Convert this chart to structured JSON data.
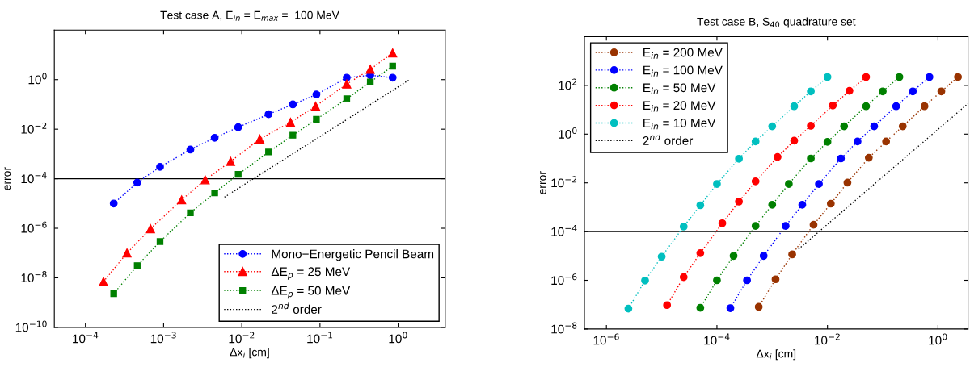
{
  "chart_data": [
    {
      "type": "line",
      "title": "Test case A, E$_{in}$ = E$_{max}$ =  100 MeV",
      "xlabel": "Δx$_{i}$ [cm]",
      "ylabel": "error",
      "log": "xy",
      "grid": false,
      "legend": "bottom right",
      "line_style": "dotted",
      "xlim": [
        4e-05,
        4
      ],
      "ylim": [
        1e-10,
        100
      ],
      "xticks": [
        {
          "value": 0.0001,
          "label": "10$^{−4}$"
        },
        {
          "value": 0.001,
          "label": "10$^{−3}$"
        },
        {
          "value": 0.01,
          "label": "10$^{−2}$"
        },
        {
          "value": 0.1,
          "label": "10$^{−1}$"
        },
        {
          "value": 1,
          "label": "10$^{0}$"
        }
      ],
      "yticks": [
        {
          "value": 1e-10,
          "label": "10$^{−10}$"
        },
        {
          "value": 1e-08,
          "label": "10$^{−8}$"
        },
        {
          "value": 1e-06,
          "label": "10$^{−6}$"
        },
        {
          "value": 0.0001,
          "label": "10$^{−4}$"
        },
        {
          "value": 0.01,
          "label": "10$^{−2}$"
        },
        {
          "value": 1,
          "label": "10$^{0}$"
        }
      ],
      "ref_lines": [
        {
          "axis": "y",
          "value": 0.0001,
          "color": "#000000",
          "line_style": "solid"
        }
      ],
      "series": [
        {
          "name": "Mono−Energetic Pencil Beam",
          "color": "#0000ff",
          "marker": "circle",
          "x": [
            0.00023,
            0.00046,
            0.0009,
            0.0022,
            0.0045,
            0.009,
            0.022,
            0.045,
            0.09,
            0.22,
            0.44,
            0.85
          ],
          "values": [
            1e-05,
            7e-05,
            0.0003,
            0.0015,
            0.0045,
            0.012,
            0.04,
            0.1,
            0.25,
            1.2,
            1.5,
            1.2
          ]
        },
        {
          "name": "ΔE$_{p}$ = 25 MeV",
          "color": "#ff0000",
          "marker": "triangle",
          "x": [
            0.00017,
            0.00034,
            0.00068,
            0.0017,
            0.0034,
            0.0072,
            0.017,
            0.042,
            0.088,
            0.22,
            0.44,
            0.85
          ],
          "values": [
            7e-09,
            1e-07,
            9.5e-07,
            1.4e-05,
            9e-05,
            0.0005,
            0.004,
            0.019,
            0.085,
            0.66,
            2.6,
            12
          ]
        },
        {
          "name": "ΔE$_{p}$ = 50 MeV",
          "color": "#008000",
          "marker": "square",
          "x": [
            0.00023,
            0.00046,
            0.0009,
            0.0022,
            0.0045,
            0.009,
            0.022,
            0.045,
            0.09,
            0.22,
            0.44,
            0.85
          ],
          "values": [
            2.3e-09,
            3.1e-08,
            2.9e-07,
            4.2e-06,
            2.7e-05,
            0.00015,
            0.0012,
            0.0057,
            0.025,
            0.17,
            0.8,
            3.5
          ]
        },
        {
          "name": "2$^{nd}$ order",
          "color": "#000000",
          "marker": "none",
          "x": [
            0.006,
            1.4
          ],
          "values": [
            1.8e-05,
            1.0
          ]
        }
      ]
    },
    {
      "type": "line",
      "title": "Test case B, S$_{40}$ quadrature set",
      "xlabel": "Δx$_{i}$ [cm]",
      "ylabel": "error",
      "log": "xy",
      "grid": false,
      "legend": "top left",
      "line_style": "dotted",
      "xlim": [
        4e-07,
        3.5
      ],
      "ylim": [
        1e-08,
        10000
      ],
      "xticks": [
        {
          "value": 1e-06,
          "label": "10$^{−6}$"
        },
        {
          "value": 0.0001,
          "label": "10$^{−4}$"
        },
        {
          "value": 0.01,
          "label": "10$^{−2}$"
        },
        {
          "value": 1,
          "label": "10$^{0}$"
        }
      ],
      "yticks": [
        {
          "value": 1e-08,
          "label": "10$^{−8}$"
        },
        {
          "value": 1e-06,
          "label": "10$^{−6}$"
        },
        {
          "value": 0.0001,
          "label": "10$^{−4}$"
        },
        {
          "value": 0.01,
          "label": "10$^{−2}$"
        },
        {
          "value": 1,
          "label": "10$^{0}$"
        },
        {
          "value": 100,
          "label": "10$^{2}$"
        }
      ],
      "ref_lines": [
        {
          "axis": "y",
          "value": 0.0001,
          "color": "#000000",
          "line_style": "solid"
        }
      ],
      "series": [
        {
          "name": "E$_{in}$ = 200 MeV",
          "color": "#993300",
          "marker": "circle",
          "x": [
            0.00057,
            0.00115,
            0.0023,
            0.0056,
            0.0115,
            0.023,
            0.056,
            0.115,
            0.23,
            0.57,
            1.15,
            2.3
          ],
          "values": [
            8.1e-08,
            1.1e-06,
            1.15e-05,
            0.00019,
            0.0014,
            0.0102,
            0.107,
            0.5,
            2.1,
            14,
            57,
            220
          ]
        },
        {
          "name": "E$_{in}$ = 100 MeV",
          "color": "#0000ff",
          "marker": "circle",
          "x": [
            0.000175,
            0.00035,
            0.0007,
            0.00175,
            0.0035,
            0.007,
            0.0175,
            0.035,
            0.07,
            0.175,
            0.35,
            0.7
          ],
          "values": [
            7.2e-08,
            1e-06,
            1e-05,
            0.00017,
            0.00126,
            0.009,
            0.1,
            0.5,
            2.1,
            14,
            57,
            220
          ]
        },
        {
          "name": "E$_{in}$ = 50 MeV",
          "color": "#008000",
          "marker": "circle",
          "x": [
            5e-05,
            0.0001,
            0.0002,
            0.0005,
            0.001,
            0.002,
            0.005,
            0.01,
            0.02,
            0.05,
            0.1,
            0.2
          ],
          "values": [
            7.4e-08,
            1e-06,
            1e-05,
            0.00017,
            0.00126,
            0.009,
            0.1,
            0.48,
            2.1,
            14,
            57,
            220
          ]
        },
        {
          "name": "E$_{in}$ = 20 MeV",
          "color": "#ff0000",
          "marker": "circle",
          "x": [
            1.25e-05,
            2.5e-05,
            5e-05,
            0.000125,
            0.00025,
            0.0005,
            0.00125,
            0.0025,
            0.005,
            0.0125,
            0.025,
            0.05
          ],
          "values": [
            9.6e-08,
            1.35e-06,
            1.3e-05,
            0.00022,
            0.0017,
            0.0115,
            0.115,
            0.54,
            2.2,
            15,
            60,
            220
          ]
        },
        {
          "name": "E$_{in}$ = 10 MeV",
          "color": "#00bfbf",
          "marker": "circle",
          "x": [
            2.5e-06,
            5e-06,
            1e-05,
            2.5e-05,
            5e-05,
            0.0001,
            0.00025,
            0.0005,
            0.001,
            0.0025,
            0.005,
            0.01
          ],
          "values": [
            6.9e-08,
            9.8e-07,
            9.3e-06,
            0.00016,
            0.0012,
            0.009,
            0.098,
            0.5,
            2.1,
            14,
            57,
            220
          ]
        },
        {
          "name": "2$^{nd}$ order",
          "color": "#000000",
          "marker": "none",
          "x": [
            0.003,
            3.5
          ],
          "values": [
            1.9e-05,
            18
          ]
        }
      ]
    }
  ]
}
